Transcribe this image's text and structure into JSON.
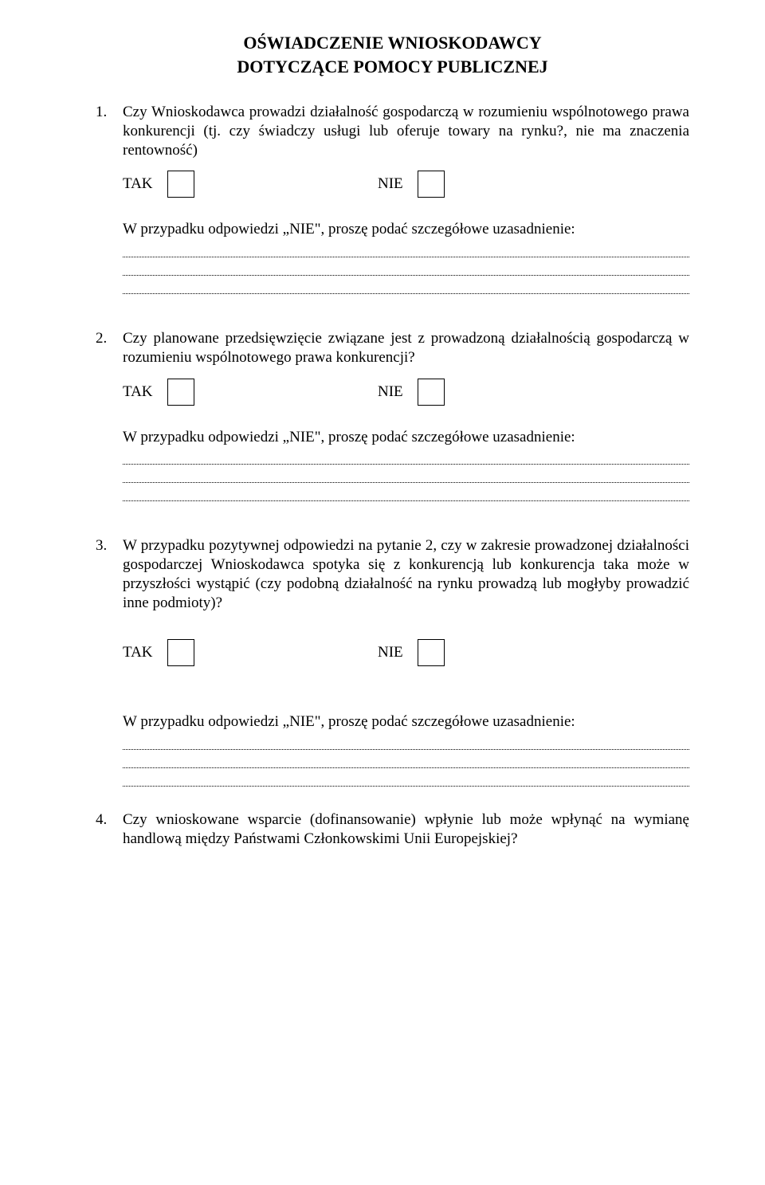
{
  "header": {
    "title": "OŚWIADCZENIE WNIOSKODAWCY",
    "subtitle": "DOTYCZĄCE POMOCY PUBLICZNEJ"
  },
  "labels": {
    "tak": "TAK",
    "nie": "NIE"
  },
  "questions": {
    "q1": {
      "num": "1.",
      "text": "Czy Wnioskodawca prowadzi działalność gospodarczą w rozumieniu wspólnotowego prawa konkurencji (tj. czy świadczy usługi lub oferuje towary na rynku?, nie ma znaczenia rentowność)",
      "justify_prompt": "W przypadku odpowiedzi „NIE\", proszę podać szczegółowe uzasadnienie:"
    },
    "q2": {
      "num": "2.",
      "text": "Czy planowane przedsięwzięcie związane jest z prowadzoną działalnością gospodarczą w rozumieniu wspólnotowego prawa konkurencji?",
      "justify_prompt": "W przypadku odpowiedzi „NIE\", proszę podać szczegółowe uzasadnienie:"
    },
    "q3": {
      "num": "3.",
      "text": "W przypadku pozytywnej odpowiedzi na pytanie 2, czy w zakresie prowadzonej działalności gospodarczej Wnioskodawca spotyka się z konkurencją lub konkurencja taka może w przyszłości wystąpić (czy podobną działalność na rynku prowadzą lub mogłyby prowadzić inne podmioty)?",
      "justify_prompt": "W przypadku odpowiedzi „NIE\", proszę podać szczegółowe uzasadnienie:"
    },
    "q4": {
      "num": "4.",
      "text": "Czy wnioskowane wsparcie (dofinansowanie) wpłynie lub może wpłynąć na wymianę handlową między Państwami Członkowskimi Unii Europejskiej?"
    }
  }
}
